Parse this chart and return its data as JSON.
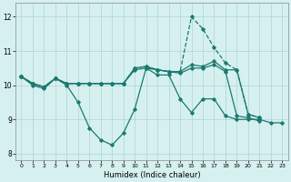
{
  "xlabel": "Humidex (Indice chaleur)",
  "bg_color": "#d6f0f0",
  "grid_color": "#aed4d4",
  "line_color": "#1a7a6e",
  "xlim": [
    -0.5,
    23.5
  ],
  "ylim": [
    7.8,
    12.4
  ],
  "xticks": [
    0,
    1,
    2,
    3,
    4,
    5,
    6,
    7,
    8,
    9,
    10,
    11,
    12,
    13,
    14,
    15,
    16,
    17,
    18,
    19,
    20,
    21,
    22,
    23
  ],
  "yticks": [
    8,
    9,
    10,
    11,
    12
  ],
  "series1_x": [
    0,
    1,
    2,
    3,
    4,
    5,
    6,
    7,
    8,
    9,
    10,
    11,
    12,
    13,
    14,
    15,
    16,
    17,
    18,
    19,
    20,
    21,
    22,
    23
  ],
  "series1_y": [
    10.25,
    10.0,
    9.9,
    10.2,
    10.0,
    9.5,
    8.75,
    8.4,
    8.25,
    8.6,
    9.3,
    10.5,
    10.3,
    10.3,
    9.6,
    9.2,
    9.6,
    9.6,
    9.1,
    9.0,
    9.0,
    9.0,
    8.9,
    8.9
  ],
  "series2_x": [
    0,
    1,
    2,
    3,
    4,
    5,
    6,
    7,
    8,
    9,
    10,
    11,
    12,
    13,
    14,
    15,
    16,
    17,
    18,
    19,
    20,
    21
  ],
  "series2_y": [
    10.25,
    10.05,
    9.95,
    10.2,
    10.05,
    10.05,
    10.05,
    10.05,
    10.05,
    10.05,
    10.45,
    10.5,
    10.45,
    10.4,
    10.35,
    10.5,
    10.5,
    10.6,
    10.4,
    9.1,
    9.05,
    8.95
  ],
  "series3_x": [
    0,
    1,
    2,
    3,
    4,
    5,
    6,
    7,
    8,
    9,
    10,
    11,
    12,
    13,
    14,
    15,
    16,
    17,
    18,
    19,
    20,
    21
  ],
  "series3_y": [
    10.25,
    10.05,
    9.95,
    10.2,
    10.05,
    10.05,
    10.05,
    10.05,
    10.05,
    10.05,
    10.5,
    10.55,
    10.45,
    10.4,
    10.4,
    10.6,
    10.55,
    10.7,
    10.45,
    10.45,
    9.15,
    9.05
  ],
  "series4_x": [
    0,
    1,
    2,
    3,
    4,
    5,
    6,
    7,
    8,
    9,
    10,
    11,
    12,
    13,
    14,
    15,
    16,
    17,
    18,
    19,
    20,
    21
  ],
  "series4_y": [
    10.25,
    10.05,
    9.95,
    10.2,
    10.05,
    10.05,
    10.05,
    10.05,
    10.05,
    10.05,
    10.5,
    10.55,
    10.45,
    10.4,
    10.4,
    12.0,
    11.65,
    11.1,
    10.65,
    10.45,
    9.15,
    9.05
  ]
}
